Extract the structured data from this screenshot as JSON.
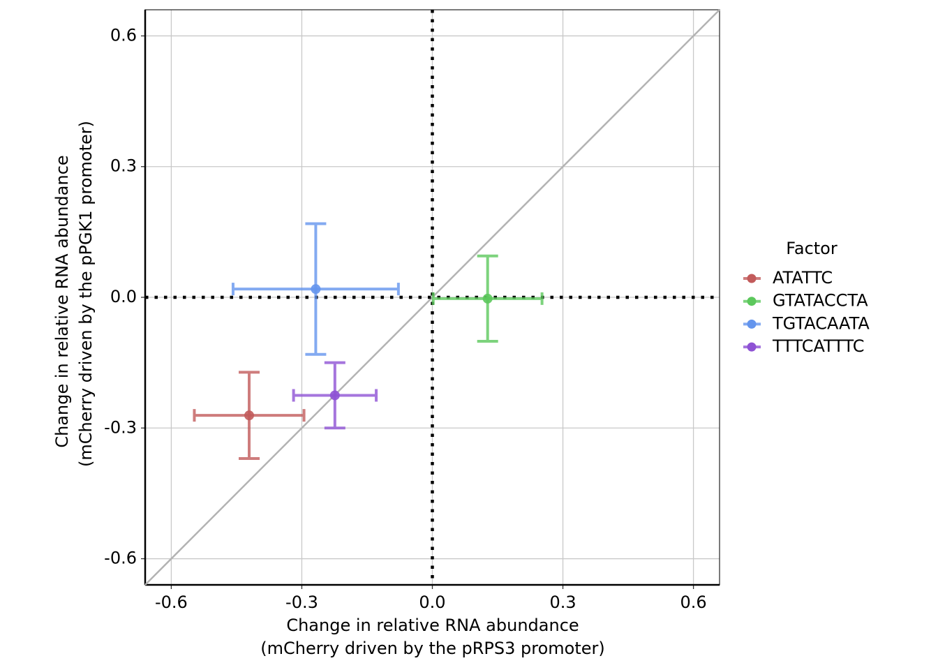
{
  "chart_data": {
    "type": "scatter",
    "xlabel": [
      "Change in relative RNA abundance",
      "(mCherry driven by the pRPS3 promoter)"
    ],
    "ylabel": [
      "Change in relative RNA abundance",
      "(mCherry driven by the pPGK1 promoter)"
    ],
    "legend_title": "Factor",
    "legend": "right",
    "grid": true,
    "xlim": [
      -0.66,
      0.66
    ],
    "ylim": [
      -0.66,
      0.66
    ],
    "xticks": [
      -0.6,
      -0.3,
      {
        "value": 0,
        "label": "0.0"
      },
      0.3,
      0.6
    ],
    "yticks": [
      -0.6,
      -0.3,
      {
        "value": 0,
        "label": "0.0"
      },
      0.3,
      0.6
    ],
    "series": [
      {
        "name": "ATATTC",
        "color": "#c25b5b",
        "x": [
          -0.421
        ],
        "y": [
          -0.271
        ],
        "xerr": [
          0.126
        ],
        "yerr": [
          0.099
        ]
      },
      {
        "name": "GTATACCTA",
        "color": "#5cc85c",
        "x": [
          0.127
        ],
        "y": [
          -0.003
        ],
        "xerr": [
          0.125
        ],
        "yerr": [
          0.098
        ]
      },
      {
        "name": "TGTACAATA",
        "color": "#6495ed",
        "x": [
          -0.268
        ],
        "y": [
          0.019
        ],
        "xerr": [
          0.19
        ],
        "yerr": [
          0.15
        ]
      },
      {
        "name": "TTTCATTTC",
        "color": "#8e52d4",
        "x": [
          -0.224
        ],
        "y": [
          -0.225
        ],
        "xerr": [
          0.095
        ],
        "yerr": [
          0.075
        ]
      }
    ]
  }
}
